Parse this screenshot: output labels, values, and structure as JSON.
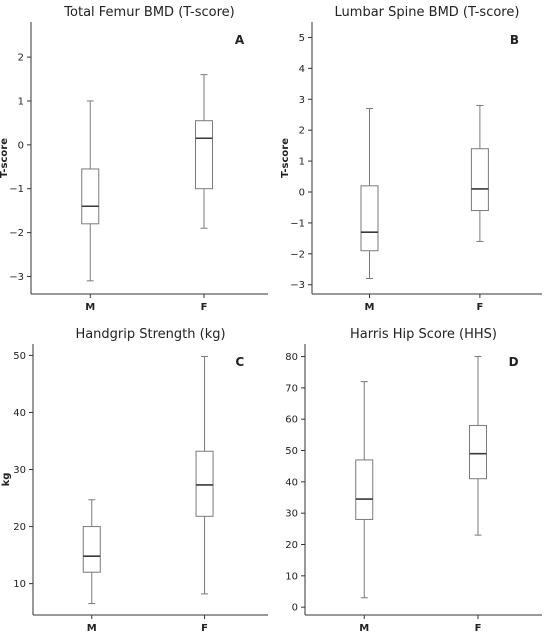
{
  "chart_data": [
    {
      "type": "box",
      "panel_label": "A",
      "title": "Total Femur BMD (T-score)",
      "xlabel": "",
      "ylabel": "T-score",
      "categories": [
        "M",
        "F"
      ],
      "ylim": [
        -3.4,
        2.8
      ],
      "yticks": [
        -3,
        -2,
        -1,
        0,
        1,
        2
      ],
      "boxes": [
        {
          "category": "M",
          "min": -3.1,
          "q1": -1.8,
          "median": -1.4,
          "q3": -0.55,
          "max": 1.0
        },
        {
          "category": "F",
          "min": -1.9,
          "q1": -1.0,
          "median": 0.15,
          "q3": 0.55,
          "max": 1.6
        }
      ]
    },
    {
      "type": "box",
      "panel_label": "B",
      "title": "Lumbar Spine BMD (T-score)",
      "xlabel": "",
      "ylabel": "T-score",
      "categories": [
        "M",
        "F"
      ],
      "ylim": [
        -3.3,
        5.5
      ],
      "yticks": [
        -3,
        -2,
        -1,
        0,
        1,
        2,
        3,
        4,
        5
      ],
      "boxes": [
        {
          "category": "M",
          "min": -2.8,
          "q1": -1.9,
          "median": -1.3,
          "q3": 0.2,
          "max": 2.7
        },
        {
          "category": "F",
          "min": -1.6,
          "q1": -0.6,
          "median": 0.1,
          "q3": 1.4,
          "max": 2.8
        }
      ]
    },
    {
      "type": "box",
      "panel_label": "C",
      "title": "Handgrip Strength (kg)",
      "xlabel": "",
      "ylabel": "kg",
      "categories": [
        "M",
        "F"
      ],
      "ylim": [
        4.5,
        52
      ],
      "yticks": [
        10,
        20,
        30,
        40,
        50
      ],
      "boxes": [
        {
          "category": "M",
          "min": 6.5,
          "q1": 12,
          "median": 14.8,
          "q3": 20,
          "max": 24.7
        },
        {
          "category": "F",
          "min": 8.2,
          "q1": 21.8,
          "median": 27.3,
          "q3": 33.2,
          "max": 49.8
        }
      ]
    },
    {
      "type": "box",
      "panel_label": "D",
      "title": "Harris Hip Score (HHS)",
      "xlabel": "",
      "ylabel": "",
      "categories": [
        "M",
        "F"
      ],
      "ylim": [
        -2.5,
        84
      ],
      "yticks": [
        0,
        10,
        20,
        30,
        40,
        50,
        60,
        70,
        80
      ],
      "boxes": [
        {
          "category": "M",
          "min": 3,
          "q1": 28,
          "median": 34.5,
          "q3": 47,
          "max": 72
        },
        {
          "category": "F",
          "min": 23,
          "q1": 41,
          "median": 49,
          "q3": 58,
          "max": 80
        }
      ]
    }
  ],
  "colors": {
    "box_stroke": "#7a7a7a",
    "median": "#3a3a3a",
    "axis": "#333333",
    "text": "#222222"
  }
}
